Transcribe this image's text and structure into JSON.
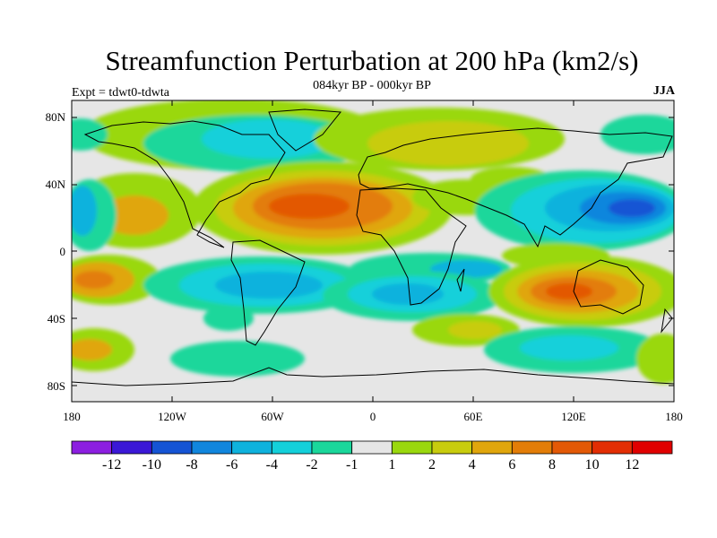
{
  "title": "Streamfunction Perturbation at 200 hPa (km2/s)",
  "subtitle": "084kyr BP - 000kyr BP",
  "left_label": "Expt = tdwt0-tdwta",
  "right_label": "JJA",
  "lat_ticks": [
    "80N",
    "40N",
    "0",
    "40S",
    "80S"
  ],
  "lon_ticks": [
    "180",
    "120W",
    "60W",
    "0",
    "60E",
    "120E",
    "180"
  ],
  "colors": {
    "ocean_background": "#e6e6e6",
    "coastline": "#000000"
  },
  "colorbar": {
    "labels": [
      "-12",
      "-10",
      "-8",
      "-6",
      "-4",
      "-2",
      "-1",
      "1",
      "2",
      "4",
      "6",
      "8",
      "10",
      "12"
    ],
    "colors": [
      "#8c1fe0",
      "#3b18d6",
      "#1554d4",
      "#1186dd",
      "#0fb2dd",
      "#14d0da",
      "#1ad79b",
      "#e6e6e6",
      "#9ad80e",
      "#c8cc0e",
      "#e0a60c",
      "#e37d08",
      "#e35906",
      "#e32e04",
      "#e00000"
    ]
  }
}
